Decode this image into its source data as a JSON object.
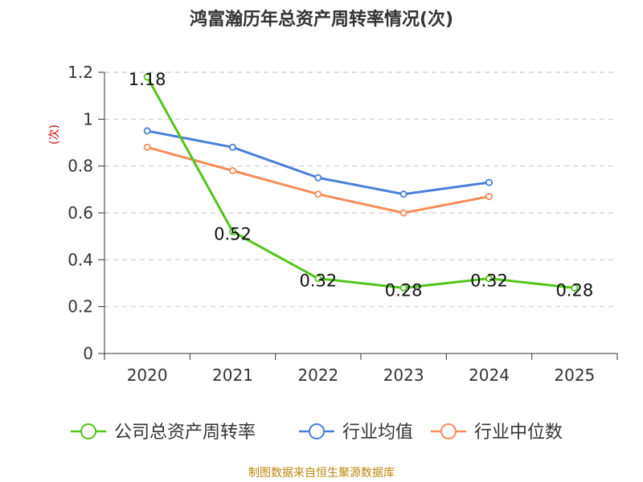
{
  "chart_data": {
    "type": "line",
    "title": "鸿富瀚历年总资产周转率情况(次)",
    "ylabel": "(次)",
    "xlabel": "",
    "categories": [
      "2020",
      "2021",
      "2022",
      "2023",
      "2024",
      "2025"
    ],
    "ylim": [
      0,
      1.2
    ],
    "yticks": [
      "0",
      "0.2",
      "0.4",
      "0.6",
      "0.8",
      "1",
      "1.2"
    ],
    "grid": true,
    "legend_position": "bottom",
    "series": [
      {
        "name": "公司总资产周转率",
        "color": "#52c41a",
        "values": [
          1.18,
          0.52,
          0.32,
          0.28,
          0.32,
          0.28
        ],
        "labels": [
          "1.18",
          "0.52",
          "0.32",
          "0.28",
          "0.32",
          "0.28"
        ],
        "show_labels": true
      },
      {
        "name": "行业均值",
        "color": "#4a7fd9",
        "values": [
          0.95,
          0.88,
          0.75,
          0.68,
          0.73,
          null
        ],
        "show_labels": false
      },
      {
        "name": "行业中位数",
        "color": "#f78c5a",
        "values": [
          0.88,
          0.78,
          0.68,
          0.6,
          0.67,
          null
        ],
        "show_labels": false
      }
    ]
  },
  "source_text": "制图数据来自恒生聚源数据库"
}
